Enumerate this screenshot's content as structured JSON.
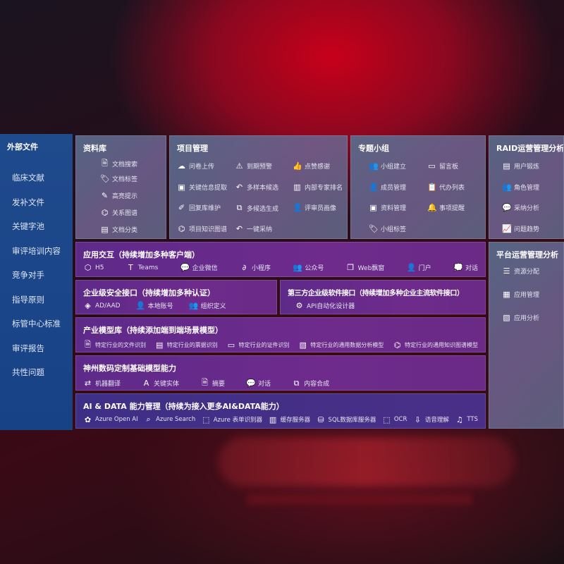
{
  "sidebar": {
    "title": "外部文件",
    "items": [
      "临床文献",
      "发补文件",
      "关键字池",
      "审评培训内容",
      "竞争对手",
      "指导原则",
      "标管中心标准",
      "审评报告",
      "共性问题"
    ]
  },
  "library": {
    "title": "资料库",
    "items": [
      {
        "icon": "document-search-icon",
        "glyph": "🗎",
        "label": "文档搜索"
      },
      {
        "icon": "tag-icon",
        "glyph": "🏷",
        "label": "文档标签"
      },
      {
        "icon": "pen-icon",
        "glyph": "✎",
        "label": "高亮提示"
      },
      {
        "icon": "graph-icon",
        "glyph": "⌬",
        "label": "关系图谱"
      },
      {
        "icon": "document-category-icon",
        "glyph": "▤",
        "label": "文档分类"
      }
    ]
  },
  "project": {
    "title": "项目管理",
    "items": [
      {
        "icon": "cloud-upload-icon",
        "glyph": "☁",
        "label": "问卷上传"
      },
      {
        "icon": "alarm-icon",
        "glyph": "⚠",
        "label": "到期预警"
      },
      {
        "icon": "thumbs-up-icon",
        "glyph": "👍",
        "label": "点赞感谢"
      },
      {
        "icon": "window-icon",
        "glyph": "▣",
        "label": "关键信息提取"
      },
      {
        "icon": "reply-icon",
        "glyph": "↶",
        "label": "多样本候选"
      },
      {
        "icon": "ranking-icon",
        "glyph": "▥",
        "label": "内部专家排名"
      },
      {
        "icon": "edit-icon",
        "glyph": "✐",
        "label": "回复库维护"
      },
      {
        "icon": "puzzle-icon",
        "glyph": "⧉",
        "label": "多候选生成"
      },
      {
        "icon": "user-icon",
        "glyph": "👤",
        "label": "评审员画像"
      },
      {
        "icon": "graph-icon",
        "glyph": "⌬",
        "label": "项目知识图谱"
      },
      {
        "icon": "reply-icon",
        "glyph": "↶",
        "label": "一键采纳"
      }
    ]
  },
  "group": {
    "title": "专题小组",
    "items": [
      {
        "icon": "users-icon",
        "glyph": "👥",
        "label": "小组建立"
      },
      {
        "icon": "bbs-icon",
        "glyph": "▭",
        "label": "留言板"
      },
      {
        "icon": "user-add-icon",
        "glyph": "👤",
        "label": "成员管理"
      },
      {
        "icon": "clipboard-icon",
        "glyph": "📋",
        "label": "代办列表"
      },
      {
        "icon": "folder-icon",
        "glyph": "▣",
        "label": "资料管理"
      },
      {
        "icon": "bell-icon",
        "glyph": "🔔",
        "label": "事项提醒"
      },
      {
        "icon": "tag-icon",
        "glyph": "🏷",
        "label": "小组标签"
      }
    ]
  },
  "raid": {
    "title": "RAID运营管理分析",
    "items": [
      {
        "icon": "id-card-icon",
        "glyph": "▤",
        "label": "用户锻炼"
      },
      {
        "icon": "users-icon",
        "glyph": "👥",
        "label": "角色管理"
      },
      {
        "icon": "qa-icon",
        "glyph": "💬",
        "label": "采纳分析"
      },
      {
        "icon": "trend-icon",
        "glyph": "📈",
        "label": "问题趋势"
      }
    ]
  },
  "platform": {
    "title": "平台运营管理分析",
    "items": [
      {
        "icon": "list-icon",
        "glyph": "☰",
        "label": "资源分配"
      },
      {
        "icon": "apps-icon",
        "glyph": "▦",
        "label": "应用管理"
      },
      {
        "icon": "chart-icon",
        "glyph": "▧",
        "label": "应用分析"
      }
    ]
  },
  "interaction": {
    "title": "应用交互（持续增加多种客户端）",
    "items": [
      {
        "icon": "html5-icon",
        "glyph": "⬡",
        "label": "H5"
      },
      {
        "icon": "teams-icon",
        "glyph": "T",
        "label": "Teams"
      },
      {
        "icon": "wechat-work-icon",
        "glyph": "💬",
        "label": "企业微信"
      },
      {
        "icon": "mini-program-icon",
        "glyph": "∂",
        "label": "小程序"
      },
      {
        "icon": "public-account-icon",
        "glyph": "👥",
        "label": "公众号"
      },
      {
        "icon": "web-window-icon",
        "glyph": "❐",
        "label": "Web飘窗"
      },
      {
        "icon": "portal-icon",
        "glyph": "👤",
        "label": "门户"
      },
      {
        "icon": "chat-icon",
        "glyph": "💭",
        "label": "对话"
      }
    ]
  },
  "security": {
    "title": "企业级安全接口（持续增加多种认证）",
    "items": [
      {
        "icon": "ad-icon",
        "glyph": "◈",
        "label": "AD/AAD"
      },
      {
        "icon": "local-account-icon",
        "glyph": "👤",
        "label": "本地账号"
      },
      {
        "icon": "organization-icon",
        "glyph": "👥",
        "label": "组织定义"
      }
    ]
  },
  "thirdparty": {
    "title": "第三方企业级软件接口（持续增加多种企业主流软件接口）",
    "items": [
      {
        "icon": "gear-icon",
        "glyph": "⚙",
        "label": "API自动化设计器"
      }
    ]
  },
  "industry": {
    "title": "产业模型库（持续添加端到端场景模型）",
    "items": [
      {
        "icon": "file-icon",
        "glyph": "🗎",
        "label": "特定行业的文件识别"
      },
      {
        "icon": "receipt-icon",
        "glyph": "▤",
        "label": "特定行业的票据识别"
      },
      {
        "icon": "id-card-icon",
        "glyph": "▭",
        "label": "特定行业的证件识别"
      },
      {
        "icon": "data-analysis-icon",
        "glyph": "▧",
        "label": "特定行业的通用数据分析模型"
      },
      {
        "icon": "knowledge-graph-icon",
        "glyph": "⌬",
        "label": "特定行业的通用知识图谱模型"
      }
    ]
  },
  "base": {
    "title": "神州数码定制基础模型能力",
    "items": [
      {
        "icon": "translate-icon",
        "glyph": "⇄",
        "label": "机器翻译"
      },
      {
        "icon": "entity-icon",
        "glyph": "A",
        "label": "关键实体"
      },
      {
        "icon": "summary-icon",
        "glyph": "🗎",
        "label": "摘要"
      },
      {
        "icon": "dialog-icon",
        "glyph": "💬",
        "label": "对话"
      },
      {
        "icon": "content-synthesis-icon",
        "glyph": "⧉",
        "label": "内容合成"
      }
    ]
  },
  "aidata": {
    "title": "AI & DATA 能力管理（持续为接入更多AI&DATA能力）",
    "items": [
      {
        "icon": "openai-icon",
        "glyph": "✿",
        "label": "Azure Open AI"
      },
      {
        "icon": "search-icon",
        "glyph": "⌕",
        "label": "Azure Search"
      },
      {
        "icon": "form-recognizer-icon",
        "glyph": "⬚",
        "label": "Azure 表单识别器"
      },
      {
        "icon": "cache-server-icon",
        "glyph": "▥",
        "label": "缓存服务器"
      },
      {
        "icon": "sql-database-icon",
        "glyph": "⛁",
        "label": "SQL数据库服务器"
      },
      {
        "icon": "ocr-icon",
        "glyph": "⬚",
        "label": "OCR"
      },
      {
        "icon": "speech-icon",
        "glyph": "⇩",
        "label": "语音理解"
      },
      {
        "icon": "tts-icon",
        "glyph": "♫",
        "label": "TTS"
      }
    ]
  }
}
